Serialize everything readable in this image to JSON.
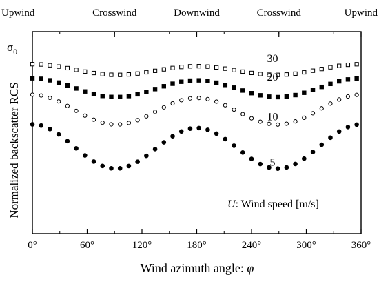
{
  "chart_data": {
    "type": "scatter",
    "xlabel_prefix": "Wind azimuth angle: ",
    "xlabel_symbol": "φ",
    "ylabel": "Normalized backscatter RCS",
    "y_symbol": "σ",
    "y_symbol_sub": "0",
    "xlim": [
      0,
      360
    ],
    "ylim": [
      0,
      1
    ],
    "y_ticks_labeled": false,
    "x_ticks": [
      "0°",
      "60°",
      "120°",
      "180°",
      "240°",
      "300°",
      "360°"
    ],
    "x_tick_values": [
      0,
      60,
      120,
      180,
      240,
      300,
      360
    ],
    "top_labels": [
      {
        "text": "Upwind",
        "angle": 0
      },
      {
        "text": "Crosswind",
        "angle": 90
      },
      {
        "text": "Downwind",
        "angle": 180
      },
      {
        "text": "Crosswind",
        "angle": 270
      },
      {
        "text": "Upwind",
        "angle": 360
      }
    ],
    "legend_note_symbol": "U",
    "legend_note_text": ": Wind speed [m/s]",
    "series_marker_step_deg": 9.6,
    "series": [
      {
        "name": "30",
        "marker": "open-square",
        "mean": 0.81,
        "a1": 0.005,
        "a2": 0.024,
        "label_angle": 260,
        "label_y": 0.85
      },
      {
        "name": "20",
        "marker": "filled-square",
        "mean": 0.72,
        "a1": 0.005,
        "a2": 0.044,
        "label_angle": 260,
        "label_y": 0.757
      },
      {
        "name": "10",
        "marker": "open-circle",
        "mean": 0.61,
        "a1": 0.008,
        "a2": 0.07,
        "label_angle": 260,
        "label_y": 0.561
      },
      {
        "name": "5",
        "marker": "filled-circle",
        "mean": 0.427,
        "a1": 0.009,
        "a2": 0.105,
        "label_angle": 260,
        "label_y": 0.336
      }
    ]
  }
}
